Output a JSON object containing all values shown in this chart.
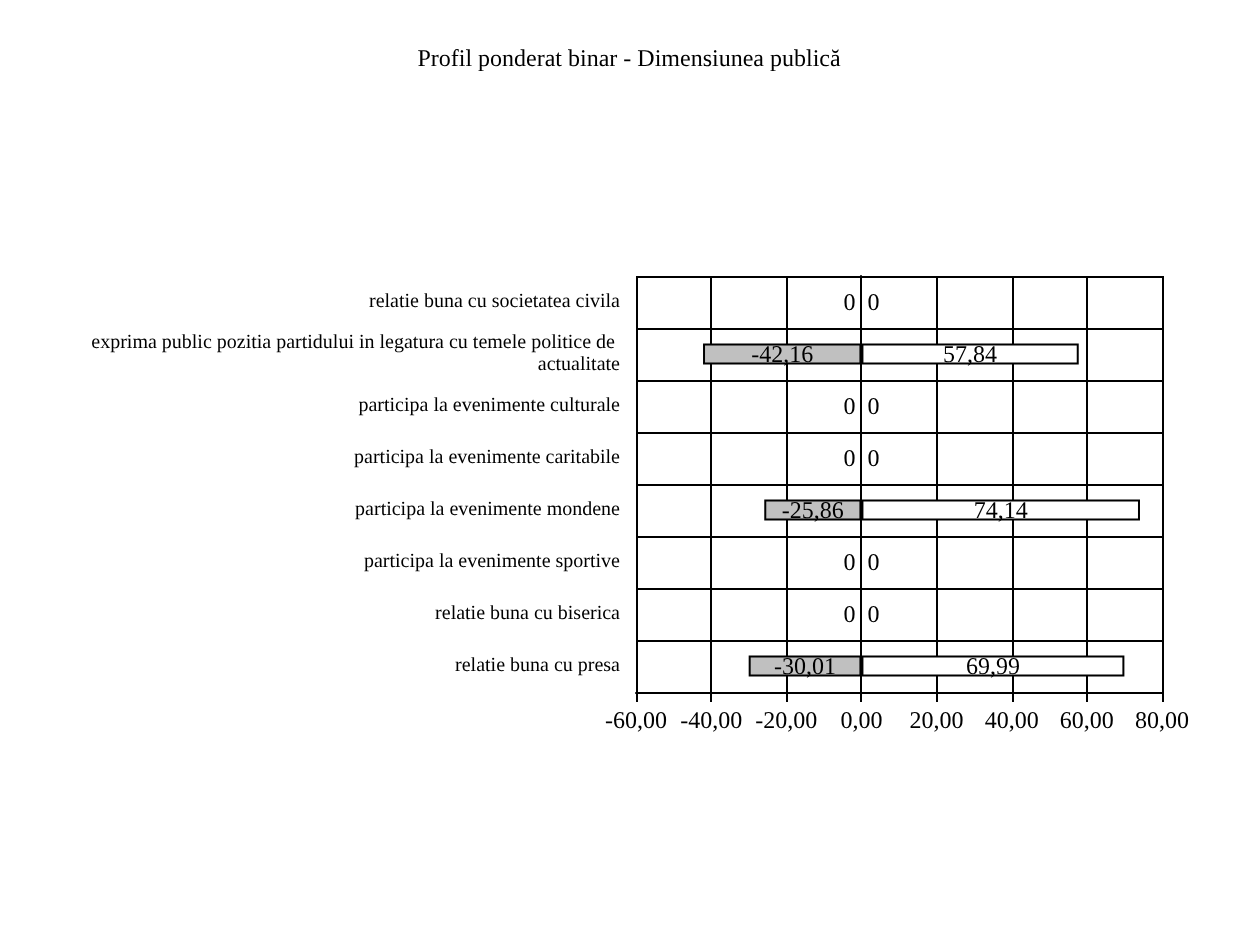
{
  "chart_data": {
    "type": "bar",
    "orientation": "horizontal",
    "stacked": true,
    "title": "Profil ponderat binar - Dimensiunea publică",
    "categories": [
      "relatie buna cu societatea civila",
      "exprima public pozitia partidului in legatura cu temele politice de actualitate",
      "participa la evenimente culturale",
      "participa la evenimente caritabile",
      "participa la evenimente mondene",
      "participa la evenimente sportive",
      "relatie buna cu biserica",
      "relatie buna cu presa"
    ],
    "series": [
      {
        "color": "#c0c0c0",
        "values": [
          0,
          -42.16,
          0,
          0,
          -25.86,
          0,
          0,
          -30.01
        ],
        "value_labels": [
          "0",
          "-42,16",
          "0",
          "0",
          "-25,86",
          "0",
          "0",
          "-30,01"
        ]
      },
      {
        "color": "#ffffff",
        "values": [
          0,
          57.84,
          0,
          0,
          74.14,
          0,
          0,
          69.99
        ],
        "value_labels": [
          "0",
          "57,84",
          "0",
          "0",
          "74,14",
          "0",
          "0",
          "69,99"
        ]
      }
    ],
    "xlim": [
      -60,
      80
    ],
    "xticks": [
      {
        "value": -60,
        "label": "-60,00"
      },
      {
        "value": -40,
        "label": "-40,00"
      },
      {
        "value": -20,
        "label": "-20,00"
      },
      {
        "value": 0,
        "label": "0,00"
      },
      {
        "value": 20,
        "label": "20,00"
      },
      {
        "value": 40,
        "label": "40,00"
      },
      {
        "value": 60,
        "label": "60,00"
      },
      {
        "value": 80,
        "label": "80,00"
      }
    ],
    "grid": true
  }
}
